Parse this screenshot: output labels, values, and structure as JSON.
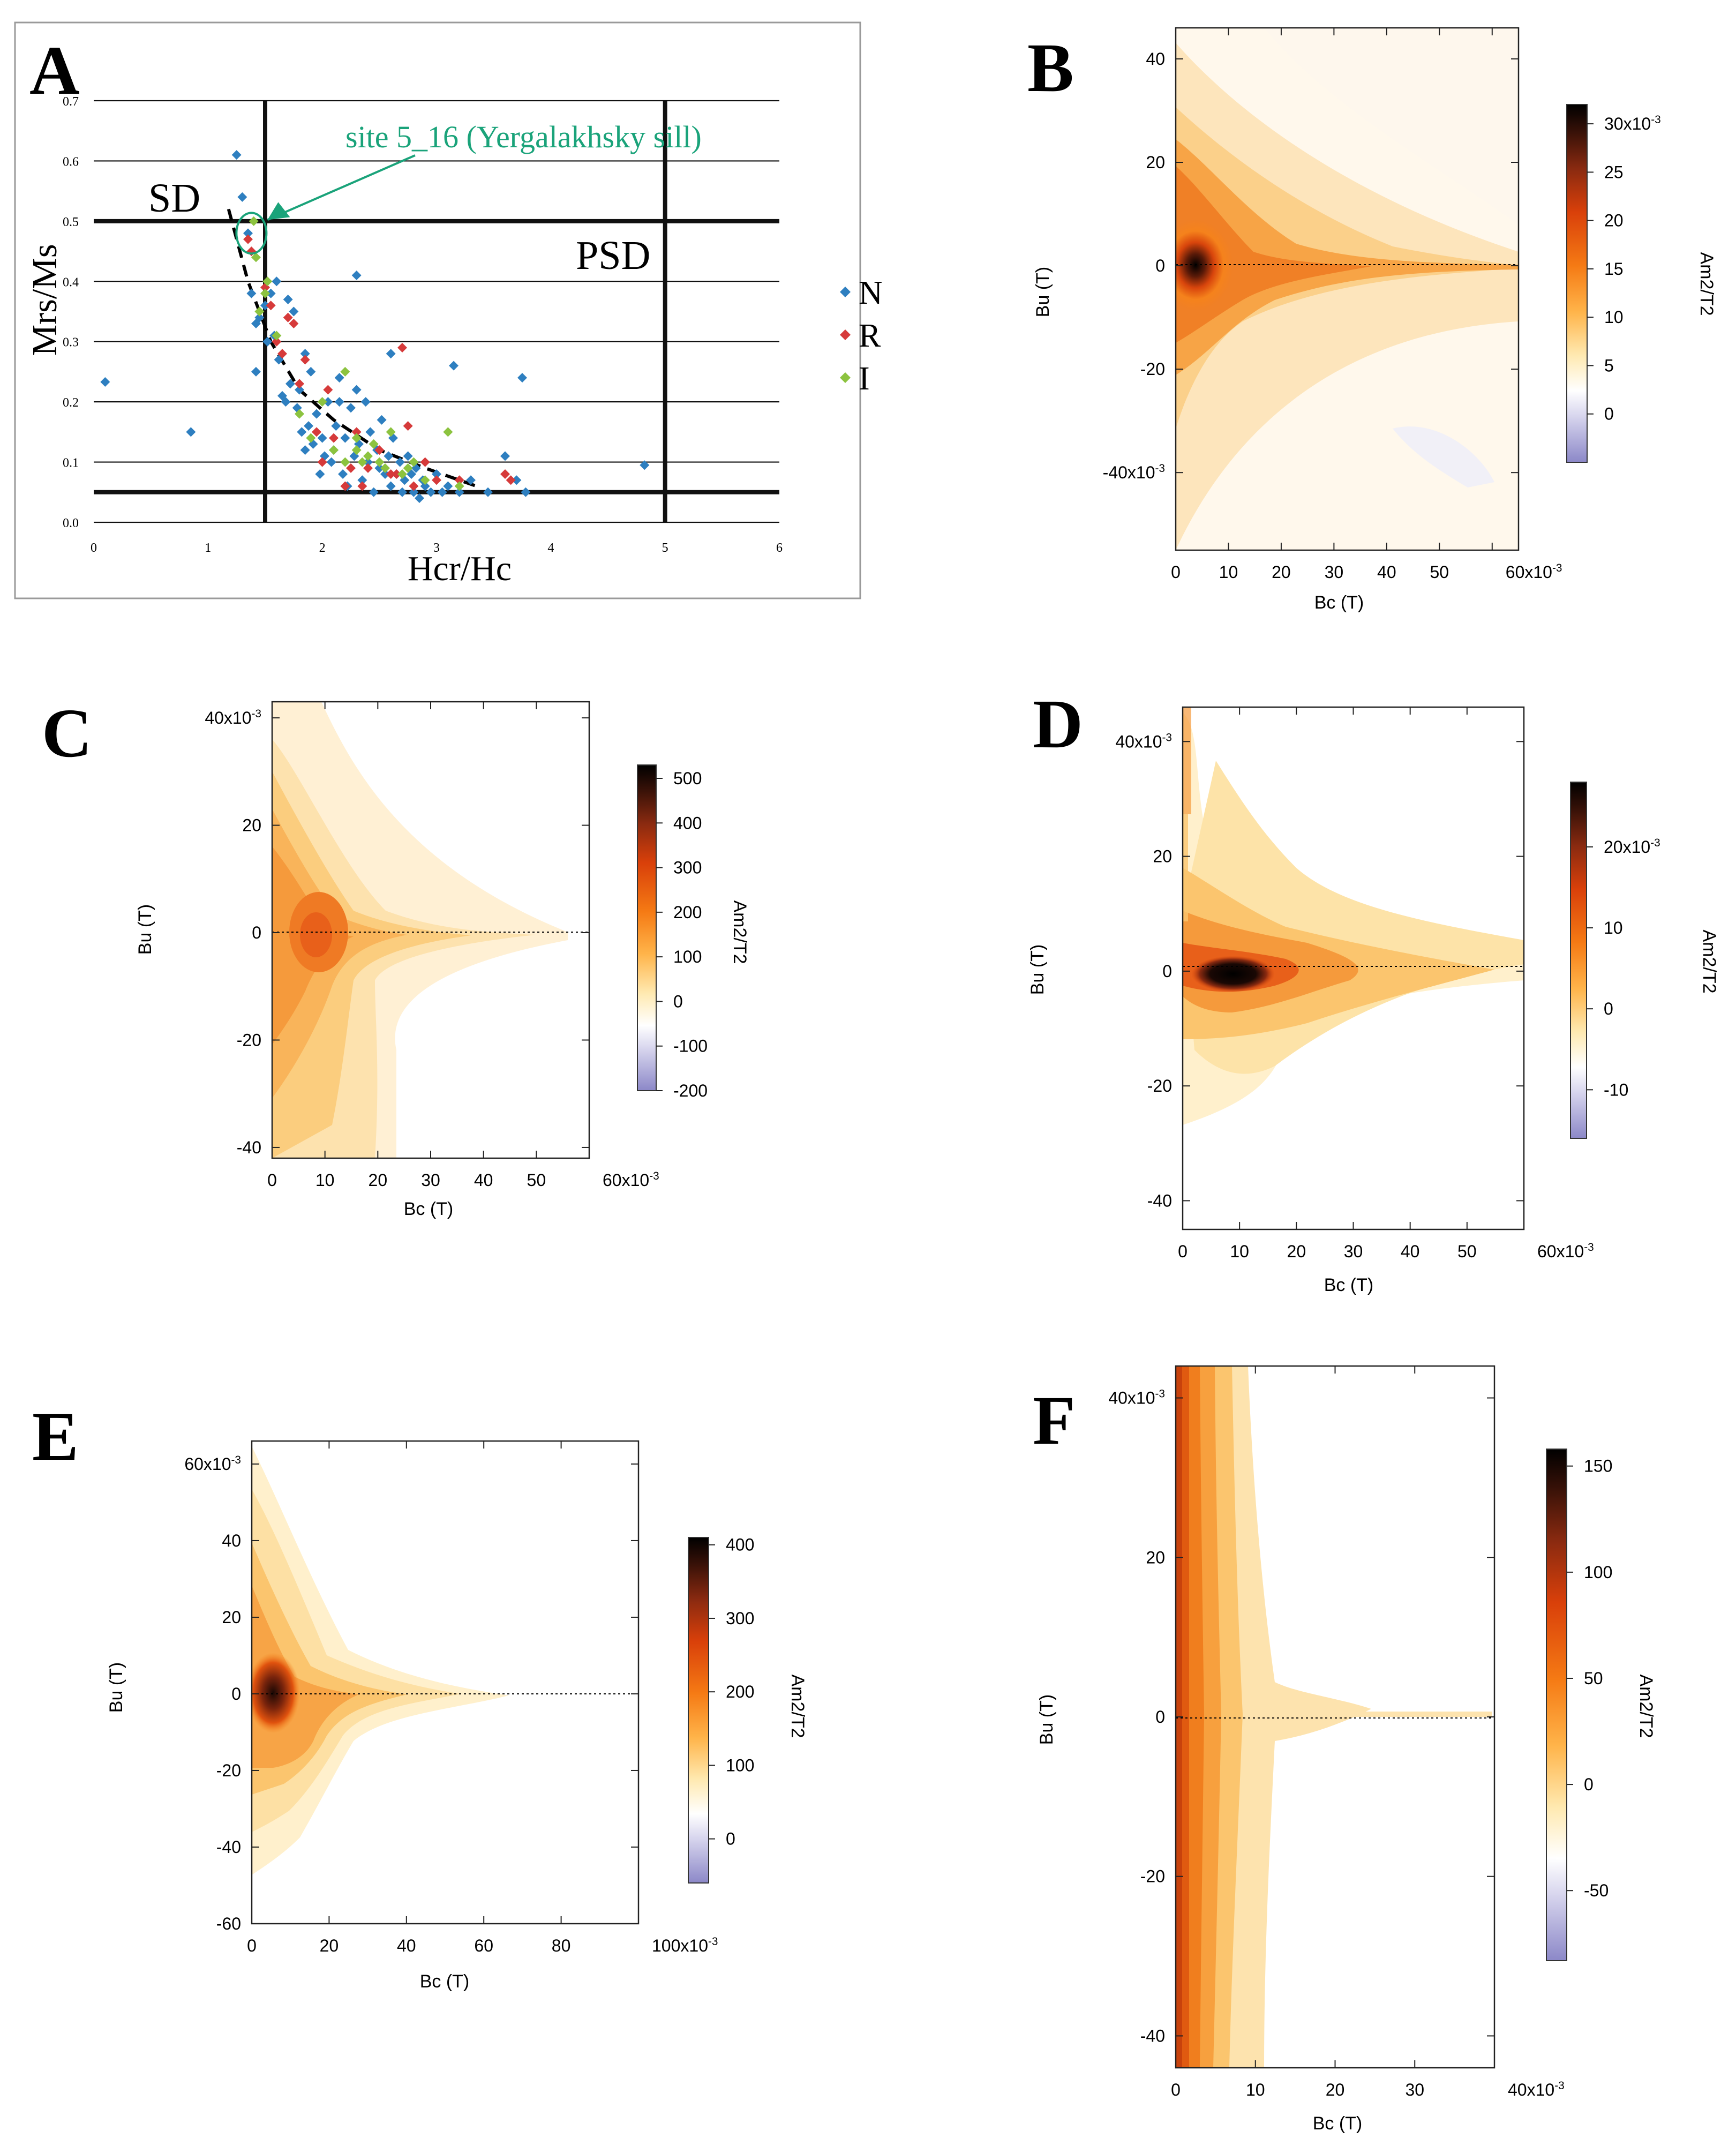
{
  "chart_data": [
    {
      "panel": "A",
      "type": "scatter",
      "xlabel": "Hcr/Hc",
      "ylabel": "Mrs/Ms",
      "xlim": [
        0,
        6
      ],
      "ylim": [
        0,
        0.7
      ],
      "xticks": [
        "0",
        "1",
        "2",
        "3",
        "4",
        "5",
        "6"
      ],
      "yticks": [
        "0.0",
        "0.1",
        "0.2",
        "0.3",
        "0.4",
        "0.5",
        "0.6",
        "0.7"
      ],
      "region_labels": [
        "SD",
        "PSD"
      ],
      "annotation": "site 5_16 (Yergalakhsky sill)",
      "annotation_point": [
        1.38,
        0.48
      ],
      "boundaries": {
        "hcr_hc": [
          1.5,
          5.0
        ],
        "mrs_ms": [
          0.5,
          0.05
        ]
      },
      "trend_line": [
        [
          1.18,
          0.52
        ],
        [
          1.35,
          0.4
        ],
        [
          1.55,
          0.3
        ],
        [
          1.8,
          0.22
        ],
        [
          2.1,
          0.17
        ],
        [
          2.5,
          0.12
        ],
        [
          2.9,
          0.09
        ],
        [
          3.35,
          0.06
        ]
      ],
      "colors": {
        "N": "#2e7fc0",
        "R": "#d63a3a",
        "I": "#8cc33f",
        "annotation": "#1aa37a"
      },
      "series": [
        {
          "name": "N",
          "points": [
            [
              0.1,
              0.233
            ],
            [
              0.85,
              0.15
            ],
            [
              1.25,
              0.61
            ],
            [
              1.3,
              0.54
            ],
            [
              1.35,
              0.48
            ],
            [
              1.38,
              0.38
            ],
            [
              1.42,
              0.33
            ],
            [
              1.42,
              0.25
            ],
            [
              1.45,
              0.34
            ],
            [
              1.5,
              0.36
            ],
            [
              1.52,
              0.3
            ],
            [
              1.55,
              0.38
            ],
            [
              1.58,
              0.31
            ],
            [
              1.6,
              0.4
            ],
            [
              1.62,
              0.27
            ],
            [
              1.65,
              0.21
            ],
            [
              1.68,
              0.2
            ],
            [
              1.7,
              0.37
            ],
            [
              1.72,
              0.23
            ],
            [
              1.75,
              0.35
            ],
            [
              1.78,
              0.19
            ],
            [
              1.8,
              0.22
            ],
            [
              1.82,
              0.15
            ],
            [
              1.85,
              0.12
            ],
            [
              1.88,
              0.16
            ],
            [
              1.9,
              0.25
            ],
            [
              1.92,
              0.13
            ],
            [
              1.95,
              0.18
            ],
            [
              1.98,
              0.08
            ],
            [
              2.0,
              0.14
            ],
            [
              2.02,
              0.11
            ],
            [
              2.05,
              0.2
            ],
            [
              2.08,
              0.1
            ],
            [
              2.1,
              0.12
            ],
            [
              2.12,
              0.16
            ],
            [
              2.15,
              0.24
            ],
            [
              2.18,
              0.08
            ],
            [
              2.2,
              0.14
            ],
            [
              2.22,
              0.06
            ],
            [
              2.25,
              0.19
            ],
            [
              2.28,
              0.11
            ],
            [
              2.3,
              0.41
            ],
            [
              2.32,
              0.13
            ],
            [
              2.35,
              0.07
            ],
            [
              2.38,
              0.2
            ],
            [
              2.4,
              0.1
            ],
            [
              2.42,
              0.15
            ],
            [
              2.45,
              0.05
            ],
            [
              2.48,
              0.12
            ],
            [
              2.5,
              0.09
            ],
            [
              2.52,
              0.17
            ],
            [
              2.55,
              0.08
            ],
            [
              2.58,
              0.11
            ],
            [
              2.6,
              0.06
            ],
            [
              2.62,
              0.14
            ],
            [
              2.65,
              0.08
            ],
            [
              2.68,
              0.1
            ],
            [
              2.7,
              0.05
            ],
            [
              2.72,
              0.07
            ],
            [
              2.75,
              0.11
            ],
            [
              2.78,
              0.08
            ],
            [
              2.8,
              0.05
            ],
            [
              2.82,
              0.09
            ],
            [
              2.85,
              0.04
            ],
            [
              2.88,
              0.07
            ],
            [
              2.9,
              0.06
            ],
            [
              2.95,
              0.05
            ],
            [
              3.0,
              0.08
            ],
            [
              3.05,
              0.05
            ],
            [
              3.1,
              0.06
            ],
            [
              3.15,
              0.26
            ],
            [
              3.2,
              0.05
            ],
            [
              3.3,
              0.07
            ],
            [
              3.45,
              0.05
            ],
            [
              3.6,
              0.11
            ],
            [
              3.7,
              0.07
            ],
            [
              3.75,
              0.24
            ],
            [
              3.78,
              0.05
            ],
            [
              4.82,
              0.095
            ],
            [
              2.6,
              0.28
            ],
            [
              2.3,
              0.22
            ],
            [
              2.15,
              0.2
            ],
            [
              1.85,
              0.28
            ]
          ]
        },
        {
          "name": "R",
          "points": [
            [
              1.35,
              0.47
            ],
            [
              1.38,
              0.45
            ],
            [
              1.5,
              0.39
            ],
            [
              1.55,
              0.36
            ],
            [
              1.6,
              0.3
            ],
            [
              1.65,
              0.28
            ],
            [
              1.7,
              0.34
            ],
            [
              1.75,
              0.33
            ],
            [
              1.8,
              0.23
            ],
            [
              1.85,
              0.27
            ],
            [
              1.95,
              0.15
            ],
            [
              2.0,
              0.1
            ],
            [
              2.05,
              0.22
            ],
            [
              2.1,
              0.14
            ],
            [
              2.2,
              0.06
            ],
            [
              2.25,
              0.09
            ],
            [
              2.3,
              0.15
            ],
            [
              2.35,
              0.06
            ],
            [
              2.4,
              0.09
            ],
            [
              2.5,
              0.12
            ],
            [
              2.6,
              0.08
            ],
            [
              2.65,
              0.08
            ],
            [
              2.7,
              0.29
            ],
            [
              2.75,
              0.16
            ],
            [
              2.8,
              0.06
            ],
            [
              2.9,
              0.1
            ],
            [
              3.0,
              0.07
            ],
            [
              3.2,
              0.07
            ],
            [
              3.6,
              0.08
            ],
            [
              3.65,
              0.07
            ]
          ]
        },
        {
          "name": "I",
          "points": [
            [
              1.4,
              0.5
            ],
            [
              1.42,
              0.44
            ],
            [
              1.45,
              0.35
            ],
            [
              1.5,
              0.38
            ],
            [
              1.52,
              0.4
            ],
            [
              1.6,
              0.31
            ],
            [
              1.8,
              0.18
            ],
            [
              1.9,
              0.14
            ],
            [
              2.0,
              0.2
            ],
            [
              2.1,
              0.12
            ],
            [
              2.2,
              0.25
            ],
            [
              2.3,
              0.14
            ],
            [
              2.35,
              0.1
            ],
            [
              2.4,
              0.11
            ],
            [
              2.45,
              0.13
            ],
            [
              2.5,
              0.1
            ],
            [
              2.55,
              0.09
            ],
            [
              2.6,
              0.15
            ],
            [
              2.7,
              0.08
            ],
            [
              2.75,
              0.09
            ],
            [
              2.8,
              0.1
            ],
            [
              2.9,
              0.07
            ],
            [
              3.1,
              0.15
            ],
            [
              3.2,
              0.06
            ],
            [
              2.3,
              0.12
            ],
            [
              2.2,
              0.1
            ]
          ]
        }
      ]
    },
    {
      "panel": "B",
      "type": "heatmap",
      "xlabel": "Bc (T)",
      "ylabel": "Bu (T)",
      "xlim": [
        0,
        0.065
      ],
      "ylim": [
        -0.055,
        0.046
      ],
      "xticks": [
        "0",
        "10",
        "20",
        "30",
        "40",
        "50",
        "60x10-3"
      ],
      "yticks": [
        "40",
        "20",
        "0",
        "-20",
        "-40x10-3"
      ],
      "colorbar": {
        "label": "Am2/T2",
        "range": [
          -0.005,
          0.032
        ],
        "ticks": [
          "30x10-3",
          "25",
          "20",
          "15",
          "10",
          "5",
          "0"
        ]
      }
    },
    {
      "panel": "C",
      "type": "heatmap",
      "xlabel": "Bc (T)",
      "ylabel": "Bu (T)",
      "xlim": [
        0,
        0.06
      ],
      "ylim": [
        -0.042,
        0.043
      ],
      "xticks": [
        "0",
        "10",
        "20",
        "30",
        "40",
        "50",
        "60x10-3"
      ],
      "yticks": [
        "40x10-3",
        "20",
        "0",
        "-20",
        "-40"
      ],
      "colorbar": {
        "label": "Am2/T2",
        "range": [
          -200,
          530
        ],
        "ticks": [
          "500",
          "400",
          "300",
          "200",
          "100",
          "0",
          "-100",
          "-200"
        ]
      }
    },
    {
      "panel": "D",
      "type": "heatmap",
      "xlabel": "Bc (T)",
      "ylabel": "Bu (T)",
      "xlim": [
        0,
        0.06
      ],
      "ylim": [
        -0.045,
        0.046
      ],
      "xticks": [
        "0",
        "10",
        "20",
        "30",
        "40",
        "50",
        "60x10-3"
      ],
      "yticks": [
        "40x10-3",
        "20",
        "0",
        "-20",
        "-40"
      ],
      "colorbar": {
        "label": "Am2/T2",
        "range": [
          -0.016,
          0.028
        ],
        "ticks": [
          "20x10-3",
          "10",
          "0",
          "-10"
        ]
      }
    },
    {
      "panel": "E",
      "type": "heatmap",
      "xlabel": "Bc (T)",
      "ylabel": "Bu (T)",
      "xlim": [
        0,
        0.1
      ],
      "ylim": [
        -0.06,
        0.066
      ],
      "xticks": [
        "0",
        "20",
        "40",
        "60",
        "80",
        "100x10-3"
      ],
      "yticks": [
        "60x10-3",
        "40",
        "20",
        "0",
        "-20",
        "-40",
        "-60"
      ],
      "colorbar": {
        "label": "Am2/T2",
        "range": [
          -60,
          410
        ],
        "ticks": [
          "400",
          "300",
          "200",
          "100",
          "0"
        ]
      }
    },
    {
      "panel": "F",
      "type": "heatmap",
      "xlabel": "Bc (T)",
      "ylabel": "Bu (T)",
      "xlim": [
        0,
        0.04
      ],
      "ylim": [
        -0.044,
        0.044
      ],
      "xticks": [
        "0",
        "10",
        "20",
        "30",
        "40x10-3"
      ],
      "yticks": [
        "40x10-3",
        "20",
        "0",
        "-20",
        "-40"
      ],
      "colorbar": {
        "label": "Am2/T2",
        "range": [
          -83,
          158
        ],
        "ticks": [
          "150",
          "100",
          "50",
          "0",
          "-50"
        ]
      }
    }
  ]
}
